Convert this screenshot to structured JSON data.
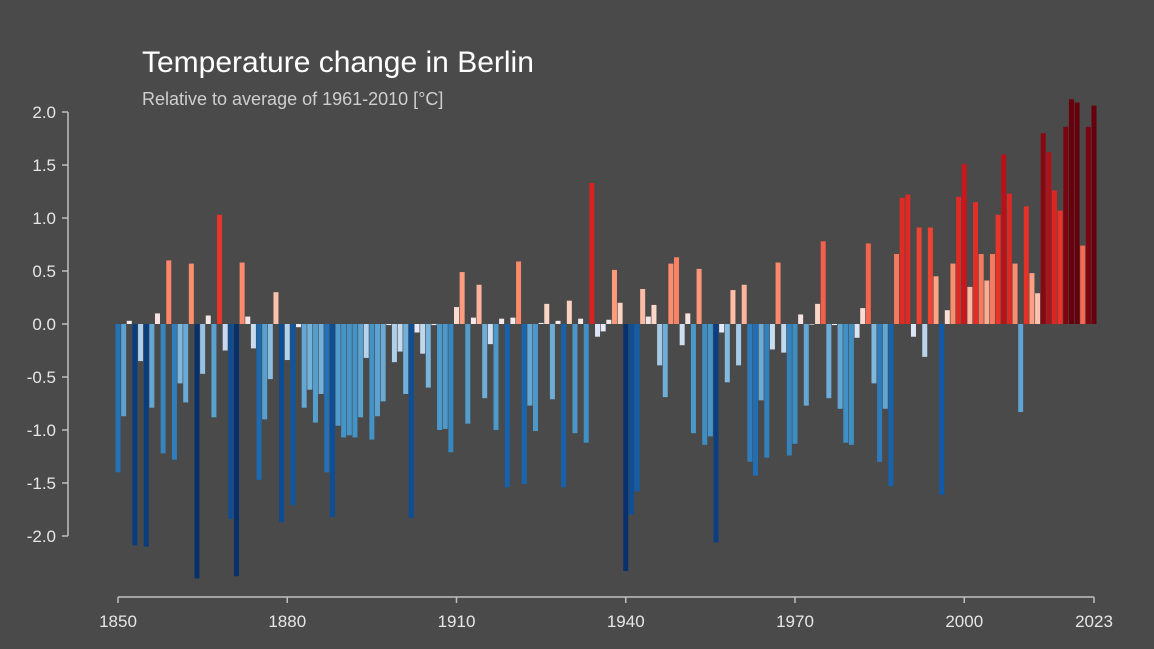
{
  "chart_data": {
    "type": "bar",
    "title": "Temperature change in Berlin",
    "subtitle": "Relative to average of 1961-2010  [°C]",
    "xlabel": "",
    "ylabel": "",
    "x_start": 1850,
    "x_end": 2023,
    "ylim": [
      -2.5,
      2.1
    ],
    "xlim": [
      1850,
      2023
    ],
    "y_ticks": [
      2.0,
      1.5,
      1.0,
      0.5,
      0.0,
      -0.5,
      -1.0,
      -1.5,
      -2.0
    ],
    "y_tick_labels": [
      "2.0",
      "1.5",
      "1.0",
      "0.5",
      "0.0",
      "-0.5",
      "-1.0",
      "-1.5",
      "-2.0"
    ],
    "x_ticks": [
      1850,
      1880,
      1910,
      1940,
      1970,
      2000,
      2023
    ],
    "x_tick_labels": [
      "1850",
      "1880",
      "1910",
      "1940",
      "1970",
      "2000",
      "2023"
    ],
    "grid": false,
    "colors": {
      "background": "#4a4a4a",
      "axis": "#bfbfbf",
      "tick_text": "#e6e6e6",
      "darkest_blue": "#08306b",
      "darkest_red": "#67000d"
    },
    "values": [
      -1.4,
      -0.87,
      0.03,
      -2.09,
      -0.35,
      -2.1,
      -0.79,
      0.1,
      -1.22,
      0.6,
      -1.28,
      -0.56,
      -0.74,
      0.57,
      -2.4,
      -0.47,
      0.08,
      -0.88,
      1.03,
      -0.25,
      -1.84,
      -2.38,
      0.58,
      0.07,
      -0.23,
      -1.47,
      -0.9,
      -0.52,
      0.3,
      -1.87,
      -0.34,
      -1.71,
      -0.03,
      -0.79,
      -0.62,
      -0.93,
      -0.66,
      -1.4,
      -1.82,
      -0.96,
      -1.07,
      -1.05,
      -1.07,
      -0.88,
      -0.32,
      -1.09,
      -0.87,
      -0.73,
      -0.01,
      -0.36,
      -0.26,
      -0.66,
      -1.83,
      -0.08,
      -0.28,
      -0.6,
      -0.01,
      -1.0,
      -0.99,
      -1.21,
      0.16,
      0.49,
      -0.94,
      0.06,
      0.37,
      -0.7,
      -0.19,
      -1.0,
      0.05,
      -1.54,
      0.06,
      0.59,
      -1.51,
      -0.77,
      -1.01,
      0.01,
      0.19,
      -0.71,
      0.03,
      -1.54,
      0.22,
      -1.03,
      0.05,
      -1.12,
      1.33,
      -0.12,
      -0.07,
      0.04,
      0.51,
      0.2,
      -2.33,
      -1.8,
      -1.58,
      0.33,
      0.07,
      0.18,
      -0.39,
      -0.69,
      0.57,
      0.63,
      -0.2,
      0.1,
      -1.03,
      0.52,
      -1.14,
      -1.06,
      -2.06,
      -0.08,
      -0.55,
      0.32,
      -0.39,
      0.37,
      -1.3,
      -1.43,
      -0.72,
      -1.26,
      -0.24,
      0.58,
      -0.27,
      -1.24,
      -1.13,
      0.09,
      -0.77,
      0.0,
      0.19,
      0.78,
      -0.7,
      -0.01,
      -0.8,
      -1.12,
      -1.14,
      -0.13,
      0.15,
      0.76,
      -0.56,
      -1.3,
      -0.8,
      -1.53,
      0.66,
      1.19,
      1.22,
      -0.12,
      0.91,
      -0.31,
      0.91,
      0.45,
      -1.61,
      0.13,
      0.57,
      1.2,
      1.51,
      0.35,
      1.15,
      0.66,
      0.41,
      0.66,
      1.03,
      1.6,
      1.23,
      0.57,
      -0.83,
      1.11,
      0.48,
      0.29,
      1.8,
      1.62,
      1.26,
      1.07,
      1.86,
      2.12,
      2.09,
      0.74,
      1.86,
      2.06
    ]
  }
}
